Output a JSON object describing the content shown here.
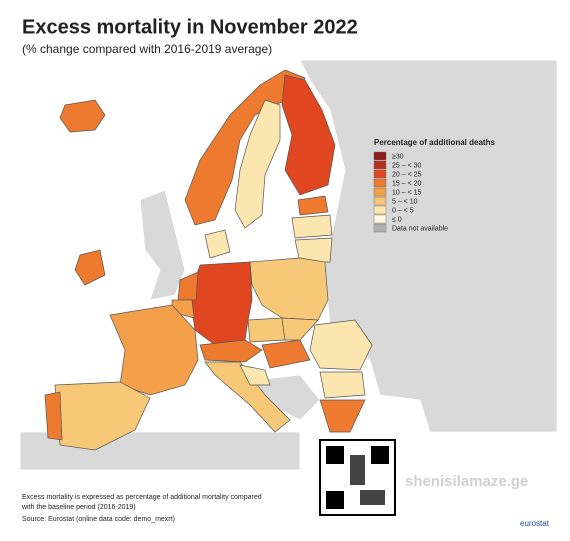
{
  "title": "Excess mortality in November 2022",
  "subtitle": "(% change compared with 2016-2019 average)",
  "legend": {
    "title": "Percentage of additional deaths",
    "items": [
      {
        "label": "≥30",
        "color": "#8c1d18"
      },
      {
        "label": "25 – < 30",
        "color": "#b92f1f"
      },
      {
        "label": "20 – < 25",
        "color": "#e0461f"
      },
      {
        "label": "15 – < 20",
        "color": "#ee7a30"
      },
      {
        "label": "10 – < 15",
        "color": "#f4a04a"
      },
      {
        "label": "5 – < 10",
        "color": "#f8c879"
      },
      {
        "label": "0 – < 5",
        "color": "#fbe6b0"
      },
      {
        "label": "≤ 0",
        "color": "#fff7dc"
      },
      {
        "label": "Data not available",
        "color": "#b0b0b0"
      }
    ]
  },
  "notes": [
    "Excess mortality is expressed as percentage of additional mortality compared",
    "with the baseline period (2016-2019)"
  ],
  "source": "Source: Eurostat (online data code: demo_mexrt)",
  "logo": "eurostat",
  "watermark": "shenisilamaze.ge"
}
